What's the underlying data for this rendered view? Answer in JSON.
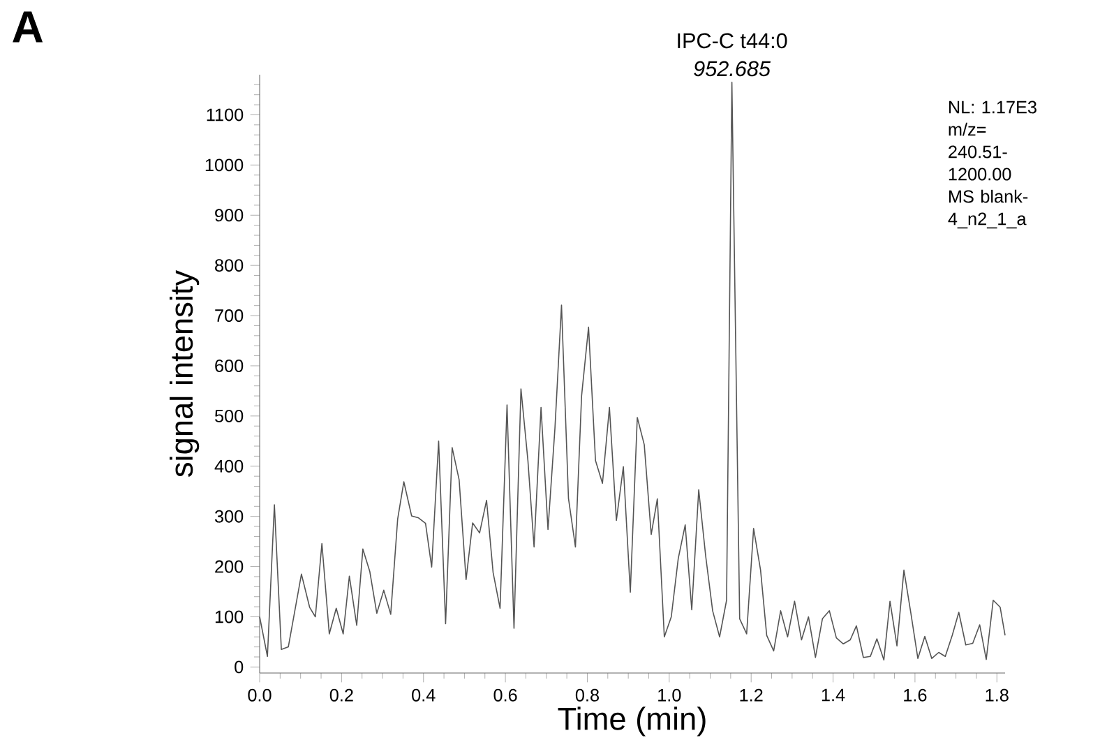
{
  "chart_data": {
    "type": "line",
    "xlabel": "Time (min)",
    "ylabel": "signal intensity",
    "color": "#555555",
    "annotations": [
      "A",
      "NL: 1.17E3 m/z= 240.51-1200.00 MS blank-4_n2_1_a",
      {
        "text": "IPC-C t44:0",
        "x": 1.153,
        "y": 1165
      },
      {
        "text": "*952.685*",
        "x": 1.153,
        "y": 1165
      }
    ],
    "x": [
      0.0,
      0.019,
      0.036,
      0.053,
      0.07,
      0.102,
      0.122,
      0.136,
      0.152,
      0.17,
      0.187,
      0.204,
      0.219,
      0.237,
      0.252,
      0.269,
      0.286,
      0.303,
      0.32,
      0.337,
      0.352,
      0.371,
      0.388,
      0.405,
      0.42,
      0.437,
      0.454,
      0.47,
      0.487,
      0.504,
      0.52,
      0.537,
      0.554,
      0.57,
      0.587,
      0.604,
      0.621,
      0.638,
      0.655,
      0.67,
      0.687,
      0.704,
      0.721,
      0.737,
      0.754,
      0.771,
      0.786,
      0.803,
      0.82,
      0.837,
      0.854,
      0.871,
      0.888,
      0.905,
      0.922,
      0.939,
      0.956,
      0.971,
      0.988,
      1.005,
      1.022,
      1.039,
      1.055,
      1.072,
      1.089,
      1.106,
      1.123,
      1.14,
      1.153,
      1.172,
      1.189,
      1.206,
      1.223,
      1.238,
      1.255,
      1.272,
      1.289,
      1.306,
      1.323,
      1.34,
      1.357,
      1.374,
      1.391,
      1.408,
      1.425,
      1.442,
      1.457,
      1.474,
      1.491,
      1.507,
      1.524,
      1.539,
      1.556,
      1.573,
      1.59,
      1.607,
      1.624,
      1.641,
      1.658,
      1.674,
      1.691,
      1.707,
      1.724,
      1.741,
      1.758,
      1.774,
      1.791,
      1.808,
      1.82
    ],
    "values": [
      100,
      21,
      323,
      35,
      40,
      185,
      119,
      100,
      246,
      66,
      117,
      66,
      181,
      83,
      235,
      190,
      107,
      153,
      105,
      295,
      369,
      301,
      297,
      286,
      199,
      450,
      86,
      437,
      373,
      174,
      287,
      267,
      332,
      188,
      117,
      522,
      77,
      554,
      411,
      239,
      517,
      274,
      476,
      721,
      336,
      239,
      540,
      677,
      411,
      366,
      517,
      292,
      399,
      149,
      497,
      443,
      264,
      335,
      60,
      100,
      216,
      283,
      114,
      353,
      221,
      112,
      60,
      133,
      1165,
      96,
      66,
      276,
      193,
      63,
      32,
      112,
      60,
      131,
      54,
      100,
      19,
      96,
      112,
      58,
      46,
      54,
      82,
      19,
      21,
      56,
      14,
      131,
      42,
      193,
      107,
      17,
      61,
      17,
      29,
      21,
      63,
      109,
      44,
      47,
      84,
      15,
      133,
      119,
      63
    ],
    "xlim": [
      0,
      1.82
    ],
    "ylim": [
      -12,
      1180
    ],
    "xticks": [
      {
        "value": 0,
        "label": "0.0"
      },
      {
        "value": 0.2,
        "label": "0.2"
      },
      {
        "value": 0.4,
        "label": "0.4"
      },
      {
        "value": 0.6,
        "label": "0.6"
      },
      {
        "value": 0.8,
        "label": "0.8"
      },
      {
        "value": 1.0,
        "label": "1.0"
      },
      {
        "value": 1.2,
        "label": "1.2"
      },
      {
        "value": 1.4,
        "label": "1.4"
      },
      {
        "value": 1.6,
        "label": "1.6"
      },
      {
        "value": 1.8,
        "label": "1.8"
      },
      {
        "value": 0.05,
        "label": null
      },
      {
        "value": 0.1,
        "label": null
      },
      {
        "value": 0.15,
        "label": null
      },
      {
        "value": 0.25,
        "label": null
      },
      {
        "value": 0.3,
        "label": null
      },
      {
        "value": 0.35,
        "label": null
      },
      {
        "value": 0.45,
        "label": null
      },
      {
        "value": 0.5,
        "label": null
      },
      {
        "value": 0.55,
        "label": null
      },
      {
        "value": 0.65,
        "label": null
      },
      {
        "value": 0.7,
        "label": null
      },
      {
        "value": 0.75,
        "label": null
      },
      {
        "value": 0.85,
        "label": null
      },
      {
        "value": 0.9,
        "label": null
      },
      {
        "value": 0.95,
        "label": null
      },
      {
        "value": 1.05,
        "label": null
      },
      {
        "value": 1.1,
        "label": null
      },
      {
        "value": 1.15,
        "label": null
      },
      {
        "value": 1.25,
        "label": null
      },
      {
        "value": 1.3,
        "label": null
      },
      {
        "value": 1.35,
        "label": null
      },
      {
        "value": 1.45,
        "label": null
      },
      {
        "value": 1.5,
        "label": null
      },
      {
        "value": 1.55,
        "label": null
      },
      {
        "value": 1.65,
        "label": null
      },
      {
        "value": 1.7,
        "label": null
      },
      {
        "value": 1.75,
        "label": null
      }
    ],
    "yticks": [
      0,
      100,
      200,
      300,
      400,
      500,
      600,
      700,
      800,
      900,
      1000,
      1100,
      {
        "value": 20,
        "label": null
      },
      {
        "value": 40,
        "label": null
      },
      {
        "value": 60,
        "label": null
      },
      {
        "value": 80,
        "label": null
      },
      {
        "value": 120,
        "label": null
      },
      {
        "value": 140,
        "label": null
      },
      {
        "value": 160,
        "label": null
      },
      {
        "value": 180,
        "label": null
      },
      {
        "value": 220,
        "label": null
      },
      {
        "value": 240,
        "label": null
      },
      {
        "value": 260,
        "label": null
      },
      {
        "value": 280,
        "label": null
      },
      {
        "value": 320,
        "label": null
      },
      {
        "value": 340,
        "label": null
      },
      {
        "value": 360,
        "label": null
      },
      {
        "value": 380,
        "label": null
      },
      {
        "value": 420,
        "label": null
      },
      {
        "value": 440,
        "label": null
      },
      {
        "value": 460,
        "label": null
      },
      {
        "value": 480,
        "label": null
      },
      {
        "value": 520,
        "label": null
      },
      {
        "value": 540,
        "label": null
      },
      {
        "value": 560,
        "label": null
      },
      {
        "value": 580,
        "label": null
      },
      {
        "value": 620,
        "label": null
      },
      {
        "value": 640,
        "label": null
      },
      {
        "value": 660,
        "label": null
      },
      {
        "value": 680,
        "label": null
      },
      {
        "value": 720,
        "label": null
      },
      {
        "value": 740,
        "label": null
      },
      {
        "value": 760,
        "label": null
      },
      {
        "value": 780,
        "label": null
      },
      {
        "value": 820,
        "label": null
      },
      {
        "value": 840,
        "label": null
      },
      {
        "value": 860,
        "label": null
      },
      {
        "value": 880,
        "label": null
      },
      {
        "value": 920,
        "label": null
      },
      {
        "value": 940,
        "label": null
      },
      {
        "value": 960,
        "label": null
      },
      {
        "value": 980,
        "label": null
      },
      {
        "value": 1020,
        "label": null
      },
      {
        "value": 1040,
        "label": null
      },
      {
        "value": 1060,
        "label": null
      },
      {
        "value": 1080,
        "label": null
      },
      {
        "value": 1120,
        "label": null
      },
      {
        "value": 1140,
        "label": null
      },
      {
        "value": 1160,
        "label": null
      }
    ]
  }
}
